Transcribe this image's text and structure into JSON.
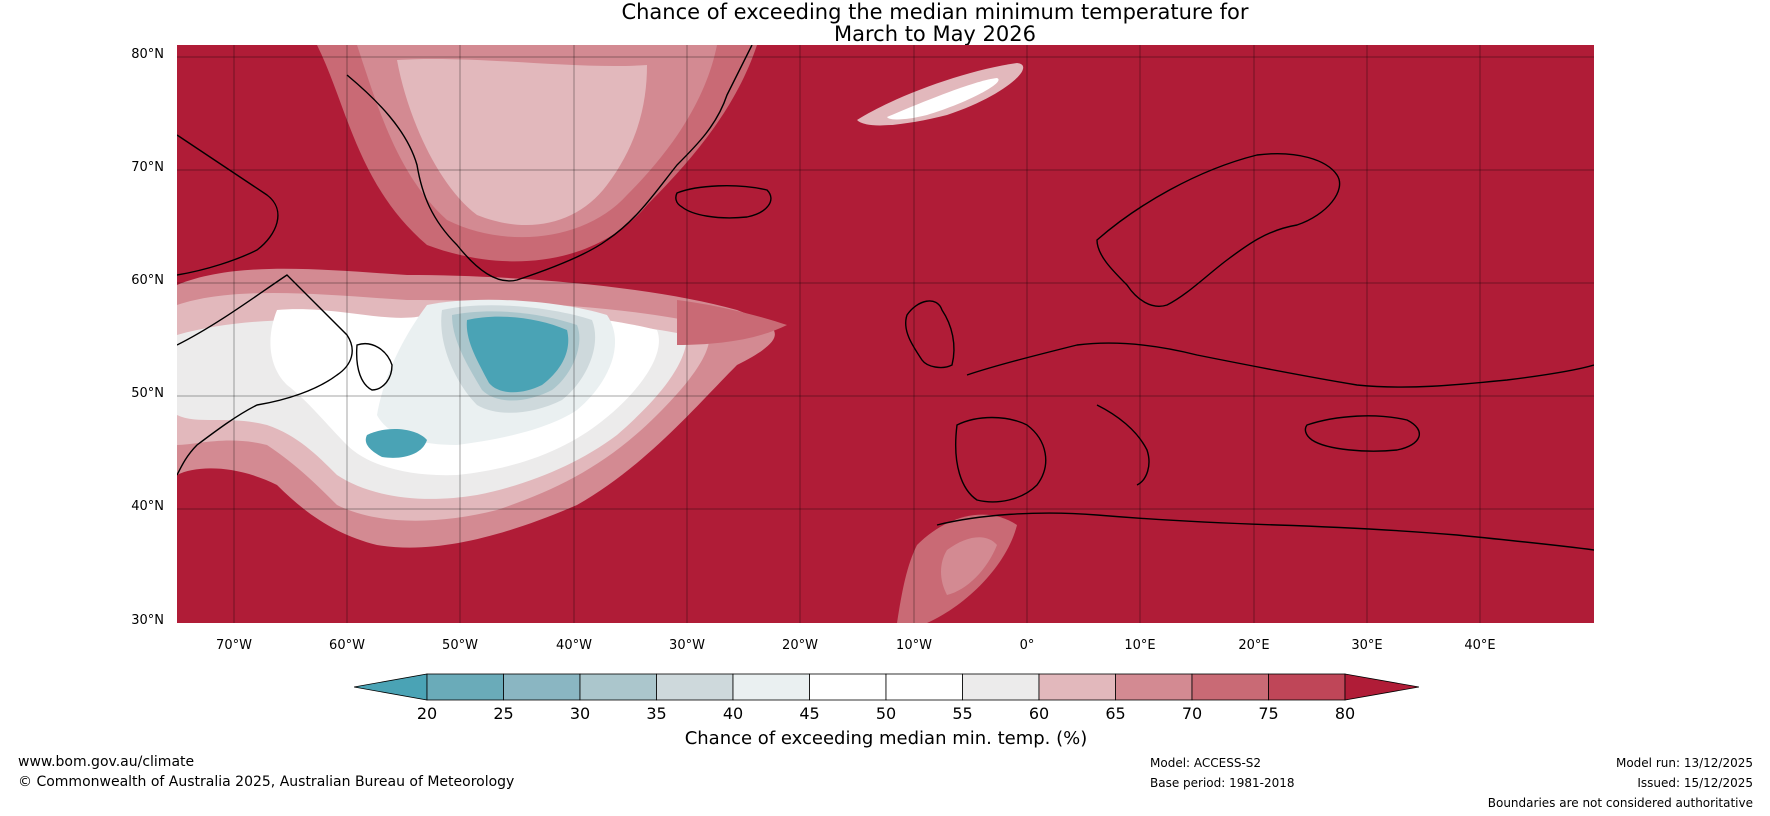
{
  "title_line1": "Chance of exceeding the median minimum temperature for",
  "title_line2": "March to May 2026",
  "lat_labels": [
    "80°N",
    "70°N",
    "60°N",
    "50°N",
    "40°N",
    "30°N"
  ],
  "lon_labels": [
    "70°W",
    "60°W",
    "50°W",
    "40°W",
    "30°W",
    "20°W",
    "10°W",
    "0°",
    "10°E",
    "20°E",
    "30°E",
    "40°E"
  ],
  "legend": {
    "title": "Chance of exceeding median min. temp. (%)",
    "ticks": [
      "20",
      "25",
      "30",
      "35",
      "40",
      "45",
      "50",
      "55",
      "60",
      "65",
      "70",
      "75",
      "80"
    ],
    "colors": [
      "#4aa3b5",
      "#6aabb9",
      "#8ab6c2",
      "#abc6cc",
      "#ced9dc",
      "#eaf0f1",
      "#ffffff",
      "#ffffff",
      "#ecebeb",
      "#e2b8bc",
      "#d38a92",
      "#c96a75",
      "#bf4658",
      "#b01c37"
    ]
  },
  "footer": {
    "url": "www.bom.gov.au/climate",
    "copyright": "© Commonwealth of Australia 2025, Australian Bureau of Meteorology",
    "model": "Model: ACCESS-S2",
    "base_period": "Base period: 1981-2018",
    "model_run": "Model run: 13/12/2025",
    "issued": "Issued: 15/12/2025",
    "disclaimer": "Boundaries are not considered authoritative"
  }
}
